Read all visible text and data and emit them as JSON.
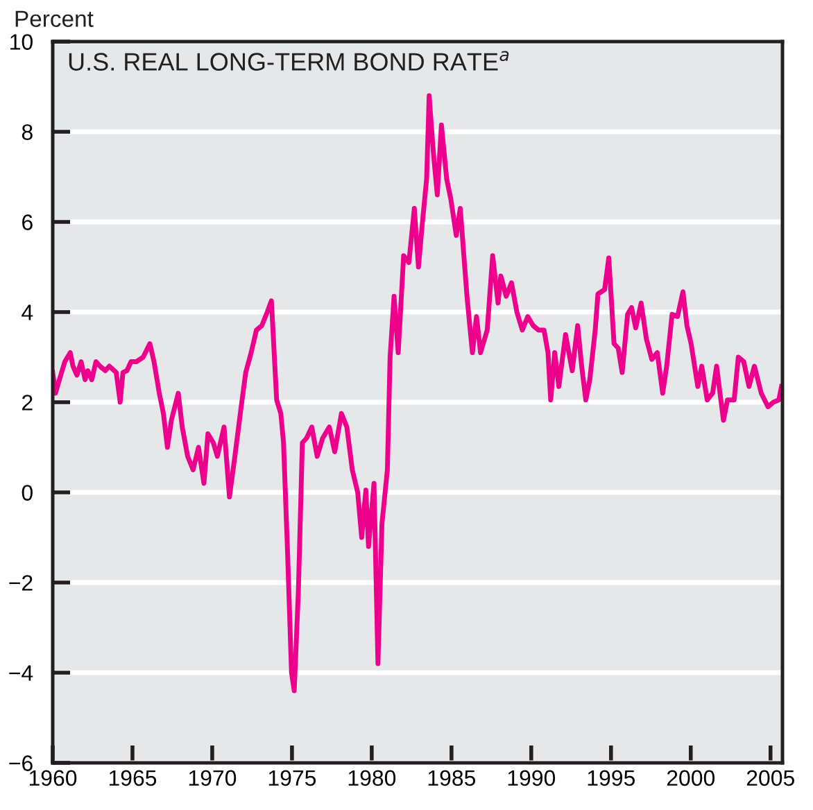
{
  "chart_data": {
    "type": "line",
    "title": "U.S. REAL LONG-TERM BOND RATE$^{a}$",
    "ylabel": "Percent",
    "x": [
      1960.0,
      1960.17,
      1960.42,
      1960.76,
      1961.1,
      1961.27,
      1961.52,
      1961.78,
      1962.03,
      1962.2,
      1962.45,
      1962.71,
      1962.96,
      1963.3,
      1963.55,
      1963.98,
      1964.23,
      1964.4,
      1964.65,
      1964.91,
      1965.25,
      1965.67,
      1966.09,
      1966.35,
      1966.68,
      1966.94,
      1967.19,
      1967.44,
      1967.87,
      1968.12,
      1968.46,
      1968.8,
      1969.14,
      1969.48,
      1969.73,
      1970.07,
      1970.32,
      1970.74,
      1971.08,
      1971.42,
      1971.76,
      1972.1,
      1972.44,
      1972.77,
      1973.11,
      1973.45,
      1973.71,
      1974.04,
      1974.3,
      1974.47,
      1974.72,
      1974.97,
      1975.14,
      1975.4,
      1975.65,
      1975.91,
      1976.24,
      1976.58,
      1976.92,
      1977.34,
      1977.68,
      1978.1,
      1978.44,
      1978.78,
      1979.12,
      1979.37,
      1979.63,
      1979.8,
      1980.14,
      1980.39,
      1980.64,
      1980.98,
      1981.15,
      1981.4,
      1981.66,
      1982.0,
      1982.33,
      1982.67,
      1982.93,
      1983.18,
      1983.44,
      1983.6,
      1983.86,
      1984.11,
      1984.37,
      1984.7,
      1984.96,
      1985.3,
      1985.55,
      1985.97,
      1986.31,
      1986.57,
      1986.82,
      1987.24,
      1987.58,
      1987.92,
      1988.09,
      1988.43,
      1988.76,
      1989.1,
      1989.44,
      1989.78,
      1990.12,
      1990.46,
      1990.8,
      1991.05,
      1991.22,
      1991.47,
      1991.73,
      1992.15,
      1992.57,
      1992.91,
      1993.16,
      1993.42,
      1993.67,
      1994.01,
      1994.18,
      1994.6,
      1994.86,
      1995.19,
      1995.45,
      1995.7,
      1996.04,
      1996.29,
      1996.55,
      1996.89,
      1997.22,
      1997.56,
      1997.9,
      1998.24,
      1998.49,
      1998.83,
      1999.17,
      1999.51,
      1999.76,
      2000.02,
      2000.44,
      2000.69,
      2001.03,
      2001.37,
      2001.62,
      2002.05,
      2002.3,
      2002.72,
      2002.98,
      2003.32,
      2003.65,
      2003.99,
      2004.42,
      2004.84,
      2005.18,
      2005.52,
      2005.69
    ],
    "series": [
      {
        "color": "#ec008c",
        "values": [
          2.66,
          2.2,
          2.5,
          2.9,
          3.1,
          2.8,
          2.6,
          2.9,
          2.5,
          2.7,
          2.5,
          2.9,
          2.8,
          2.7,
          2.8,
          2.66,
          2.0,
          2.66,
          2.7,
          2.9,
          2.9,
          3.0,
          3.3,
          2.9,
          2.2,
          1.75,
          1.0,
          1.6,
          2.2,
          1.45,
          0.8,
          0.5,
          1.0,
          0.2,
          1.3,
          1.1,
          0.8,
          1.45,
          -0.1,
          0.8,
          1.75,
          2.66,
          3.1,
          3.6,
          3.7,
          4.0,
          4.25,
          2.05,
          1.75,
          1.1,
          -1.3,
          -4.0,
          -4.4,
          -2.2,
          1.1,
          1.2,
          1.45,
          0.8,
          1.2,
          1.45,
          0.9,
          1.75,
          1.45,
          0.5,
          0.0,
          -1.0,
          0.05,
          -1.2,
          0.2,
          -3.8,
          -0.7,
          0.5,
          3.0,
          4.35,
          3.1,
          5.25,
          5.1,
          6.3,
          5.0,
          6.0,
          6.95,
          8.8,
          7.55,
          6.6,
          8.15,
          6.95,
          6.5,
          5.7,
          6.3,
          4.35,
          3.1,
          3.9,
          3.1,
          3.6,
          5.25,
          4.2,
          4.8,
          4.35,
          4.65,
          4.0,
          3.6,
          3.9,
          3.7,
          3.6,
          3.6,
          3.1,
          2.05,
          3.1,
          2.35,
          3.5,
          2.7,
          3.7,
          2.8,
          2.05,
          2.5,
          3.6,
          4.4,
          4.5,
          5.2,
          3.3,
          3.2,
          2.66,
          3.95,
          4.1,
          3.65,
          4.2,
          3.4,
          2.95,
          3.1,
          2.2,
          2.8,
          3.95,
          3.9,
          4.45,
          3.7,
          3.3,
          2.35,
          2.8,
          2.05,
          2.2,
          2.8,
          1.6,
          2.05,
          2.05,
          3.0,
          2.9,
          2.35,
          2.8,
          2.2,
          1.9,
          2.0,
          2.05,
          2.35
        ]
      }
    ],
    "xlim": [
      1960,
      2005.75
    ],
    "xticks": [
      1960,
      1965,
      1970,
      1975,
      1980,
      1985,
      1990,
      1995,
      2000,
      2005
    ],
    "ylim": [
      -6,
      10
    ],
    "yticks": [
      {
        "value": -6,
        "label": "−6"
      },
      {
        "value": -4,
        "label": "−4"
      },
      {
        "value": -2,
        "label": "−2"
      },
      0,
      2,
      4,
      6,
      8,
      10
    ],
    "grid": "y",
    "line_style": "solid"
  }
}
